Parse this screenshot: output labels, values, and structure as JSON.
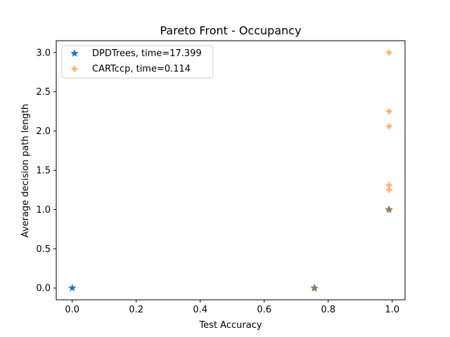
{
  "chart_data": {
    "type": "scatter",
    "title": "Pareto Front - Occupancy",
    "xlabel": "Test Accuracy",
    "ylabel": "Average decision path length",
    "xlim": [
      -0.05,
      1.04
    ],
    "ylim": [
      -0.15,
      3.15
    ],
    "xticks": [
      0.0,
      0.2,
      0.4,
      0.6,
      0.8,
      1.0
    ],
    "xtick_labels": [
      "0.0",
      "0.2",
      "0.4",
      "0.6",
      "0.8",
      "1.0"
    ],
    "yticks": [
      0.0,
      0.5,
      1.0,
      1.5,
      2.0,
      2.5,
      3.0
    ],
    "ytick_labels": [
      "0.0",
      "0.5",
      "1.0",
      "1.5",
      "2.0",
      "2.5",
      "3.0"
    ],
    "grid": false,
    "legend_position": "top-left",
    "series": [
      {
        "name": "DPDTrees, time=17.399",
        "marker": "star",
        "color": "#1f77b4",
        "x": [
          0.0,
          0.757,
          0.99
        ],
        "y": [
          0.0,
          0.0,
          1.0
        ]
      },
      {
        "name": "CARTccp, time=0.114",
        "marker": "plus",
        "color": "#ff7f0e",
        "x": [
          0.757,
          0.99,
          0.99,
          0.99,
          0.99,
          0.99,
          0.99
        ],
        "y": [
          0.0,
          1.0,
          1.25,
          1.31,
          2.06,
          2.25,
          3.0
        ]
      }
    ]
  }
}
